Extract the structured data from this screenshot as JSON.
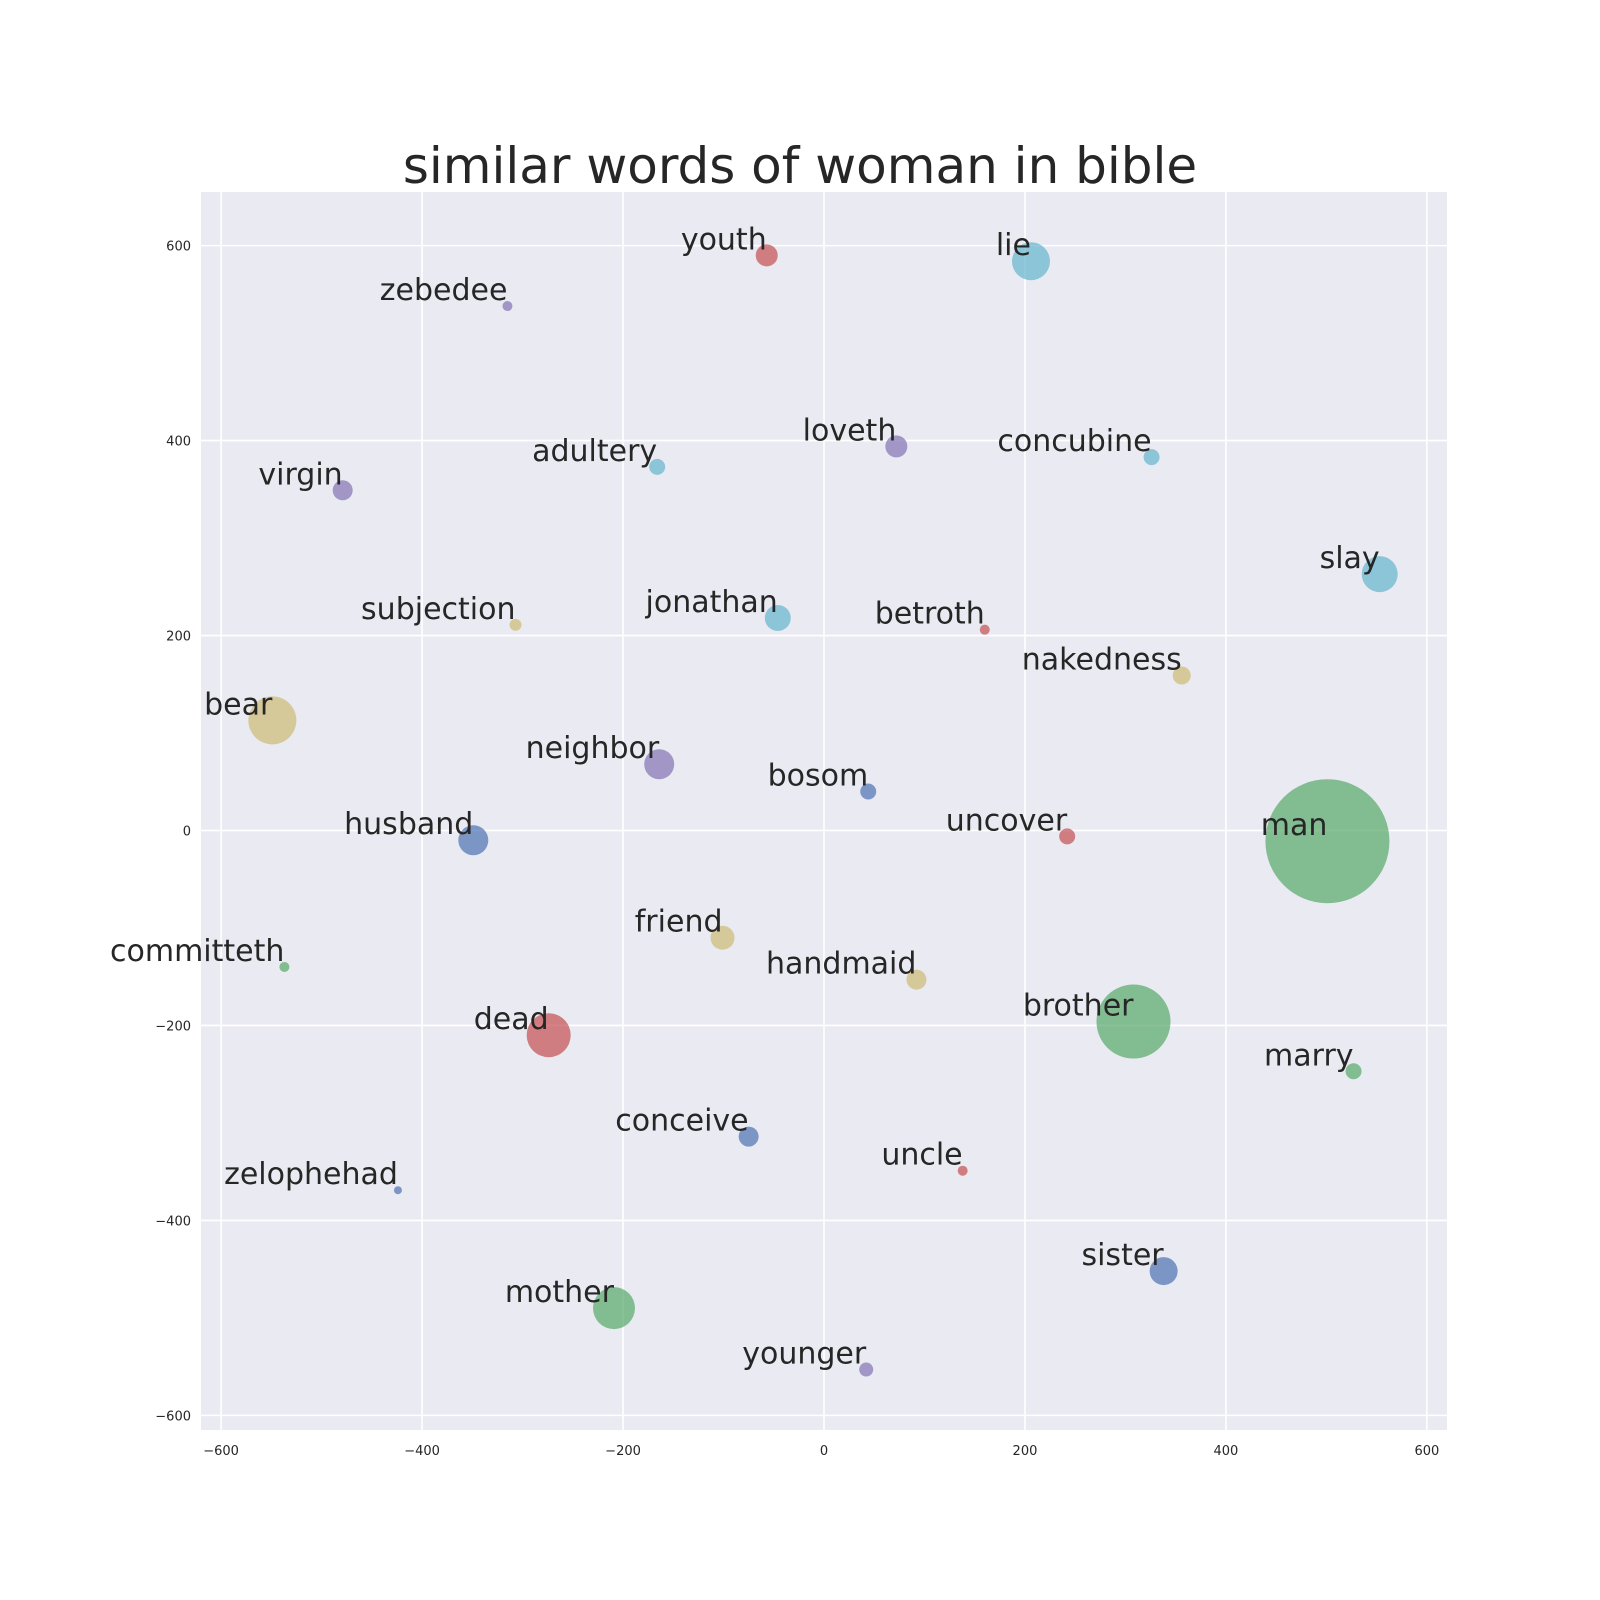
{
  "chart_data": {
    "type": "scatter",
    "title": "similar words of woman in bible",
    "xlabel": "",
    "ylabel": "",
    "xlim": [
      -620,
      620
    ],
    "ylim": [
      -615,
      655
    ],
    "xticks": [
      -600,
      -400,
      -200,
      0,
      200,
      400,
      600
    ],
    "yticks": [
      -600,
      -400,
      -200,
      0,
      200,
      400,
      600
    ],
    "xtick_labels": [
      "−600",
      "−400",
      "−200",
      "0",
      "200",
      "400",
      "600"
    ],
    "ytick_labels": [
      "−600",
      "−400",
      "−200",
      "0",
      "200",
      "400",
      "600"
    ],
    "grid": true,
    "background": "#EAEAF2",
    "colors": {
      "blue": "#4C72B0",
      "green": "#55A868",
      "red": "#C44E52",
      "purple": "#8172B2",
      "yellow": "#CCB974",
      "cyan": "#64B5CD"
    },
    "points": [
      {
        "word": "youth",
        "x": -57,
        "y": 590,
        "size": 11,
        "color": "#C44E52"
      },
      {
        "word": "zebedee",
        "x": -315,
        "y": 538,
        "size": 5,
        "color": "#8172B2"
      },
      {
        "word": "lie",
        "x": 206,
        "y": 584,
        "size": 19,
        "color": "#64B5CD"
      },
      {
        "word": "adultery",
        "x": -166,
        "y": 373,
        "size": 8,
        "color": "#64B5CD"
      },
      {
        "word": "loveth",
        "x": 72,
        "y": 394,
        "size": 11,
        "color": "#8172B2"
      },
      {
        "word": "concubine",
        "x": 326,
        "y": 383,
        "size": 8,
        "color": "#64B5CD"
      },
      {
        "word": "virgin",
        "x": -479,
        "y": 349,
        "size": 10,
        "color": "#8172B2"
      },
      {
        "word": "slay",
        "x": 553,
        "y": 263,
        "size": 18,
        "color": "#64B5CD"
      },
      {
        "word": "subjection",
        "x": -307,
        "y": 211,
        "size": 6,
        "color": "#CCB974"
      },
      {
        "word": "jonathan",
        "x": -46,
        "y": 218,
        "size": 13,
        "color": "#64B5CD"
      },
      {
        "word": "betroth",
        "x": 160,
        "y": 206,
        "size": 5,
        "color": "#C44E52"
      },
      {
        "word": "nakedness",
        "x": 356,
        "y": 159,
        "size": 9,
        "color": "#CCB974"
      },
      {
        "word": "bear",
        "x": -549,
        "y": 113,
        "size": 24,
        "color": "#CCB974"
      },
      {
        "word": "neighbor",
        "x": -164,
        "y": 68,
        "size": 15,
        "color": "#8172B2"
      },
      {
        "word": "bosom",
        "x": 44,
        "y": 40,
        "size": 8,
        "color": "#4C72B0"
      },
      {
        "word": "husband",
        "x": -349,
        "y": -10,
        "size": 15,
        "color": "#4C72B0"
      },
      {
        "word": "uncover",
        "x": 242,
        "y": -6,
        "size": 8,
        "color": "#C44E52"
      },
      {
        "word": "man",
        "x": 501,
        "y": -11,
        "size": 62,
        "color": "#55A868"
      },
      {
        "word": "friend",
        "x": -101,
        "y": -110,
        "size": 12,
        "color": "#CCB974"
      },
      {
        "word": "committeth",
        "x": -537,
        "y": -140,
        "size": 5,
        "color": "#55A868"
      },
      {
        "word": "handmaid",
        "x": 92,
        "y": -153,
        "size": 10,
        "color": "#CCB974"
      },
      {
        "word": "brother",
        "x": 308,
        "y": -196,
        "size": 37,
        "color": "#55A868"
      },
      {
        "word": "dead",
        "x": -274,
        "y": -210,
        "size": 22,
        "color": "#C44E52"
      },
      {
        "word": "marry",
        "x": 527,
        "y": -247,
        "size": 8,
        "color": "#55A868"
      },
      {
        "word": "conceive",
        "x": -75,
        "y": -314,
        "size": 10,
        "color": "#4C72B0"
      },
      {
        "word": "uncle",
        "x": 138,
        "y": -349,
        "size": 5,
        "color": "#C44E52"
      },
      {
        "word": "zelophehad",
        "x": -424,
        "y": -369,
        "size": 4,
        "color": "#4C72B0"
      },
      {
        "word": "sister",
        "x": 338,
        "y": -452,
        "size": 14,
        "color": "#4C72B0"
      },
      {
        "word": "mother",
        "x": -209,
        "y": -490,
        "size": 21,
        "color": "#55A868"
      },
      {
        "word": "younger",
        "x": 42,
        "y": -553,
        "size": 7,
        "color": "#8172B2"
      }
    ]
  }
}
